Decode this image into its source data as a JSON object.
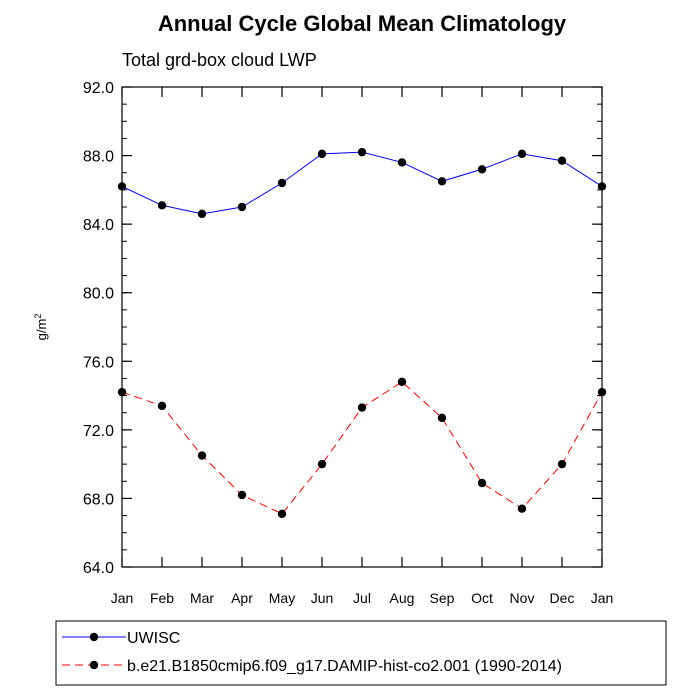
{
  "chart_data": {
    "type": "line",
    "title": "Annual Cycle Global Mean Climatology",
    "subtitle": "Total grd-box cloud LWP",
    "ylabel": "g/m",
    "ylabel_sup": "2",
    "xlabel": "",
    "ylim": [
      64.0,
      92.0
    ],
    "y_ticks": [
      "92.0",
      "88.0",
      "84.0",
      "80.0",
      "76.0",
      "72.0",
      "68.0",
      "64.0"
    ],
    "y_tick_values": [
      92,
      88,
      84,
      80,
      76,
      72,
      68,
      64
    ],
    "categories": [
      "Jan",
      "Feb",
      "Mar",
      "Apr",
      "May",
      "Jun",
      "Jul",
      "Aug",
      "Sep",
      "Oct",
      "Nov",
      "Dec",
      "Jan"
    ],
    "grid": false,
    "legend_position": "bottom",
    "series": [
      {
        "name": "UWISC",
        "color": "#0000ff",
        "dashed": false,
        "values": [
          86.2,
          85.1,
          84.6,
          85.0,
          86.4,
          88.1,
          88.2,
          87.6,
          86.5,
          87.2,
          88.1,
          87.7,
          86.2
        ]
      },
      {
        "name": "b.e21.B1850cmip6.f09_g17.DAMIP-hist-co2.001 (1990-2014)",
        "color": "#ff0000",
        "dashed": true,
        "values": [
          74.2,
          73.4,
          70.5,
          68.2,
          67.1,
          70.0,
          73.3,
          74.8,
          72.7,
          68.9,
          67.4,
          70.0,
          74.2
        ]
      }
    ]
  }
}
